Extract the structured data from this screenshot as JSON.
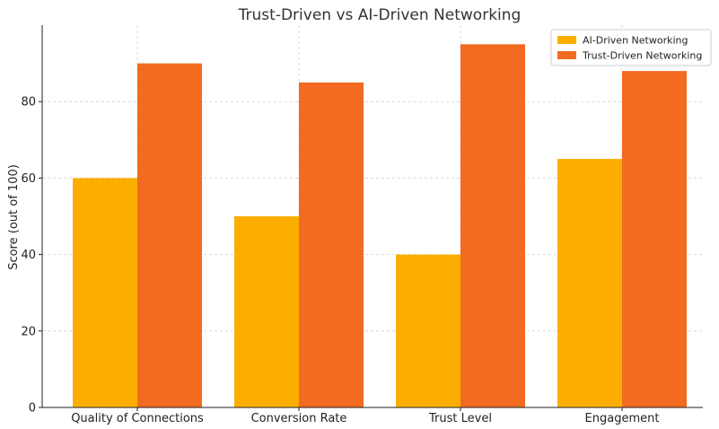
{
  "chart_data": {
    "type": "bar",
    "title": "Trust-Driven vs AI-Driven Networking",
    "xlabel": "",
    "ylabel": "Score (out of 100)",
    "categories": [
      "Quality of Connections",
      "Conversion Rate",
      "Trust Level",
      "Engagement"
    ],
    "series": [
      {
        "name": "AI-Driven Networking",
        "values": [
          60,
          50,
          40,
          65
        ],
        "color": "#fbae00"
      },
      {
        "name": "Trust-Driven Networking",
        "values": [
          90,
          85,
          95,
          88
        ],
        "color": "#f26b21"
      }
    ],
    "ylim": [
      0,
      100
    ],
    "yticks": [
      0,
      20,
      40,
      60,
      80
    ],
    "grid": true,
    "legend_position": "top-right"
  }
}
